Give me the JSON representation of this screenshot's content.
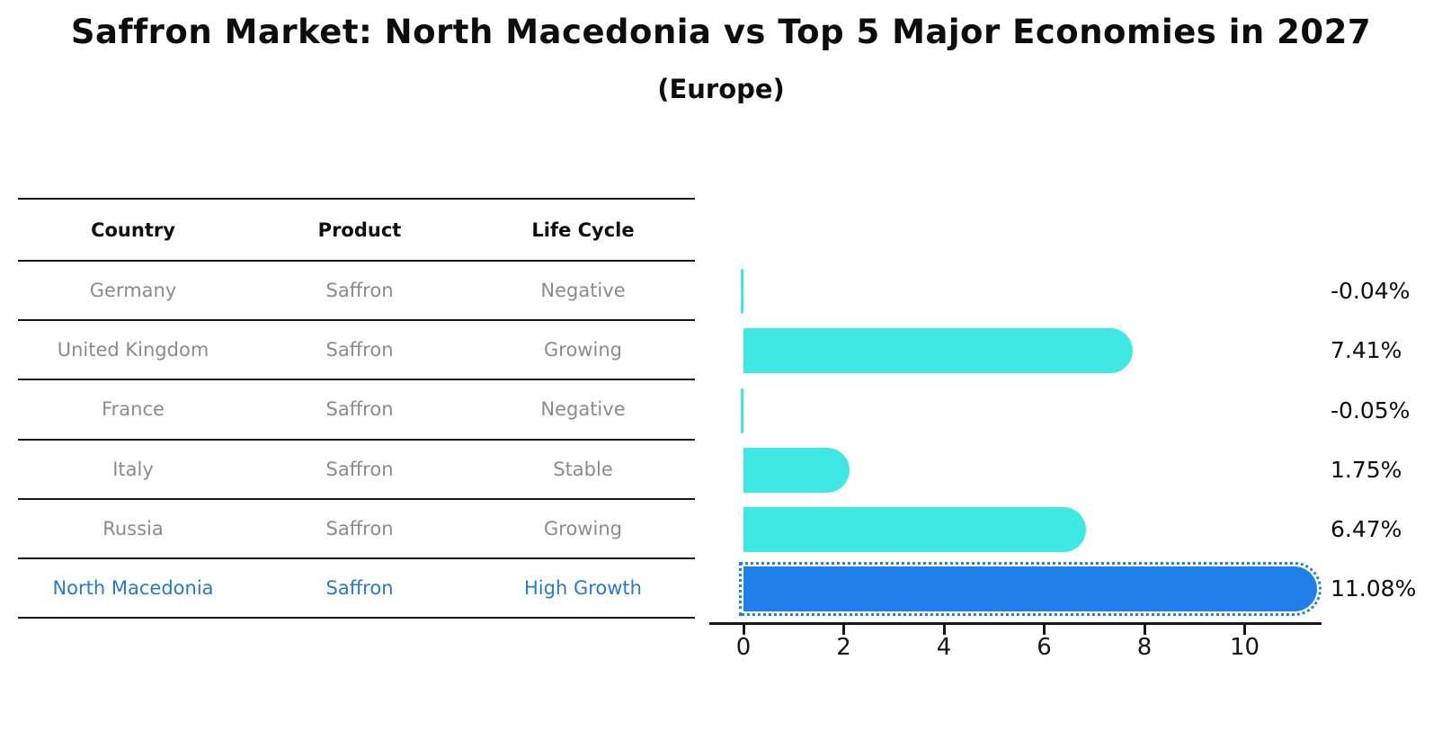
{
  "title": "Saffron Market: North Macedonia vs Top 5 Major Economies in 2027",
  "subtitle": "(Europe)",
  "table": {
    "headers": [
      "Country",
      "Product",
      "Life Cycle"
    ],
    "rows": [
      {
        "country": "Germany",
        "product": "Saffron",
        "life_cycle": "Negative",
        "highlight": false
      },
      {
        "country": "United Kingdom",
        "product": "Saffron",
        "life_cycle": "Growing",
        "highlight": false
      },
      {
        "country": "France",
        "product": "Saffron",
        "life_cycle": "Negative",
        "highlight": false
      },
      {
        "country": "Italy",
        "product": "Saffron",
        "life_cycle": "Stable",
        "highlight": false
      },
      {
        "country": "Russia",
        "product": "Saffron",
        "life_cycle": "Growing",
        "highlight": false
      },
      {
        "country": "North Macedonia",
        "product": "Saffron",
        "life_cycle": "High Growth",
        "highlight": true
      }
    ]
  },
  "chart_data": {
    "type": "bar",
    "orientation": "horizontal",
    "title": "Saffron Market: North Macedonia vs Top 5 Major Economies in 2027 (Europe)",
    "categories": [
      "Germany",
      "United Kingdom",
      "France",
      "Italy",
      "Russia",
      "North Macedonia"
    ],
    "values": [
      -0.04,
      7.41,
      -0.05,
      1.75,
      6.47,
      11.08
    ],
    "value_labels": [
      "-0.04%",
      "7.41%",
      "-0.05%",
      "1.75%",
      "6.47%",
      "11.08%"
    ],
    "xticks": [
      0,
      2,
      4,
      6,
      8,
      10
    ],
    "xlim": [
      -0.6,
      11.6
    ],
    "grid": false,
    "legend": "none",
    "bar_color": "#40e8e4",
    "highlight_bar_color": "#1e80e8",
    "highlight_index": 5,
    "row_text_color": "#8b8b8b",
    "highlight_text_color": "#2879ca"
  }
}
